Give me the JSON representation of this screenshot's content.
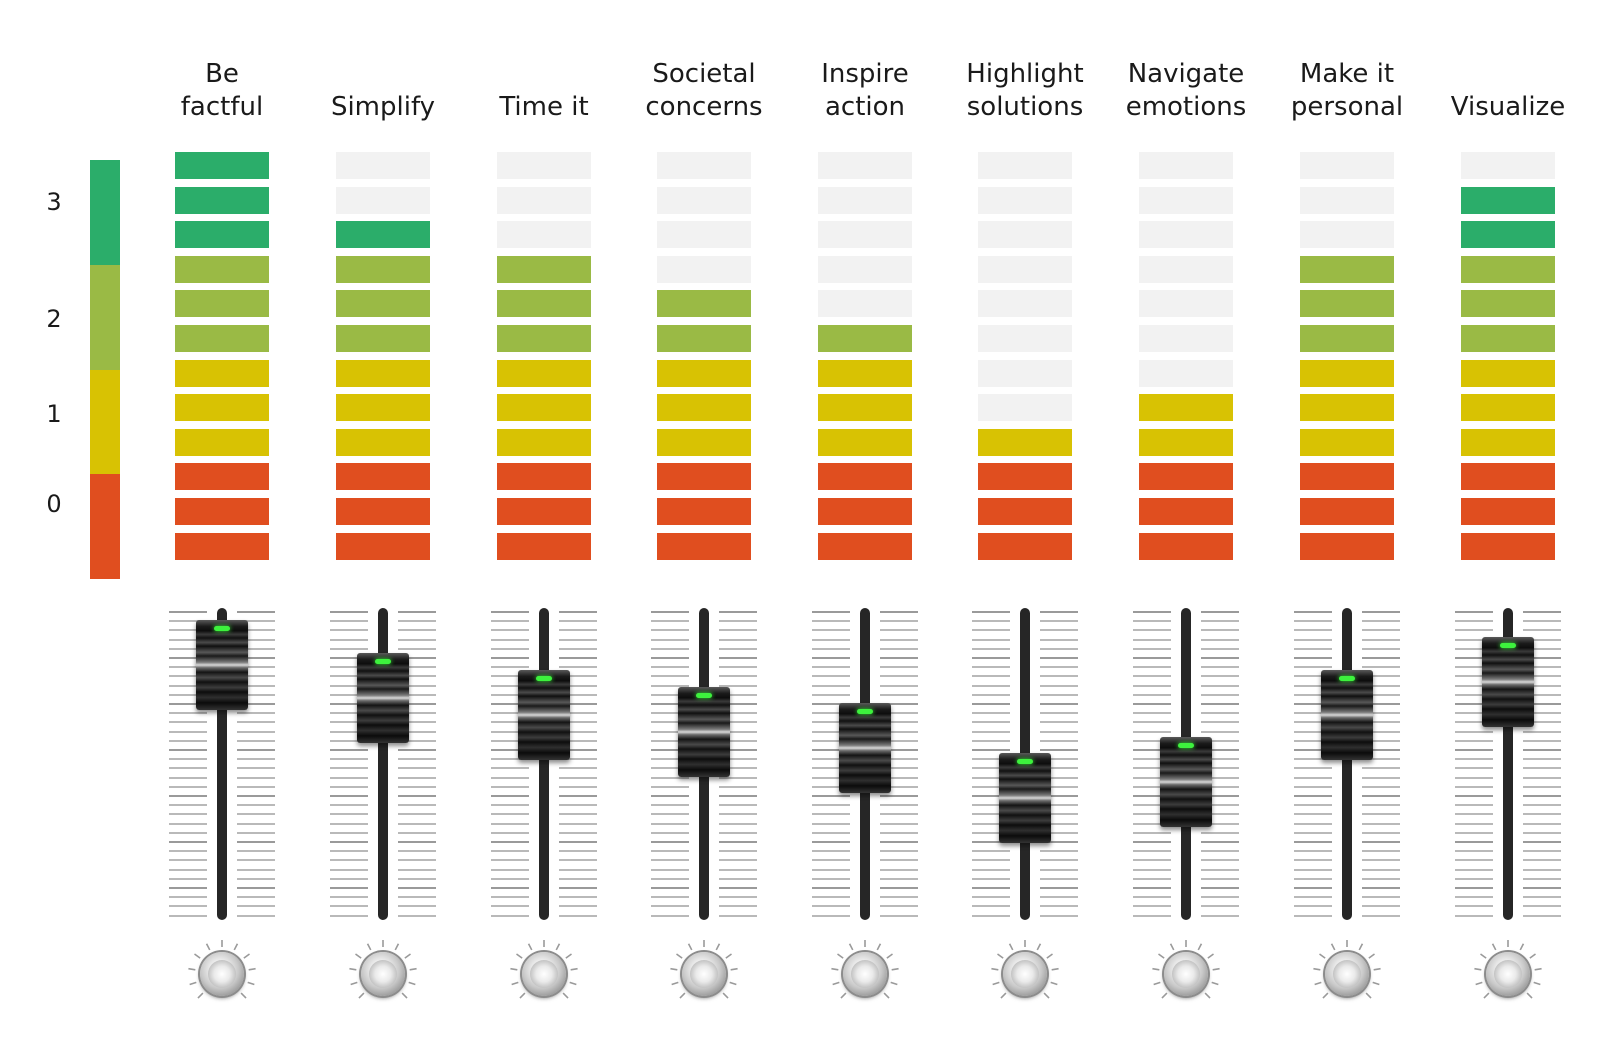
{
  "scale": {
    "levels": [
      "0",
      "1",
      "2",
      "3"
    ],
    "colors": [
      "#e04e1f",
      "#d8c203",
      "#9aba45",
      "#2bad6a"
    ],
    "segment_count": 12
  },
  "colors": {
    "red": "#e04e1f",
    "yellow": "#d8c203",
    "olive": "#9aba45",
    "green": "#2bad6a",
    "off": "#f2f2f2"
  },
  "channels": [
    {
      "label_line1": "Be",
      "label_line2": "factful",
      "segments_lit": 12
    },
    {
      "label_line1": "",
      "label_line2": "Simplify",
      "segments_lit": 10
    },
    {
      "label_line1": "",
      "label_line2": "Time it",
      "segments_lit": 9
    },
    {
      "label_line1": "Societal",
      "label_line2": "concerns",
      "segments_lit": 8
    },
    {
      "label_line1": "Inspire",
      "label_line2": "action",
      "segments_lit": 7
    },
    {
      "label_line1": "Highlight",
      "label_line2": "solutions",
      "segments_lit": 4
    },
    {
      "label_line1": "Navigate",
      "label_line2": "emotions",
      "segments_lit": 5
    },
    {
      "label_line1": "Make it",
      "label_line2": "personal",
      "segments_lit": 9
    },
    {
      "label_line1": "",
      "label_line2": "Visualize",
      "segments_lit": 11
    }
  ]
}
